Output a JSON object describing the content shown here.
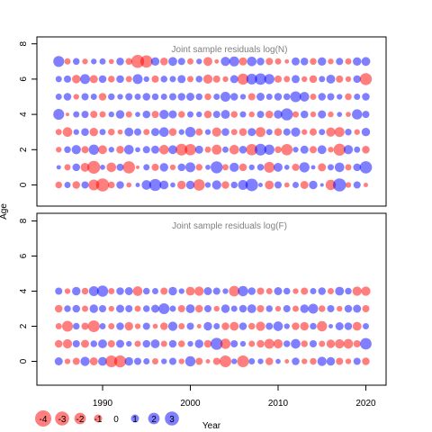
{
  "chart_data": {
    "type": "scatter",
    "subtype": "bubble-residuals",
    "xlabel": "Year",
    "ylabel": "Age",
    "x_ticks": [
      1990,
      2000,
      2010,
      2020
    ],
    "y_ticks": [
      0,
      2,
      4,
      6,
      8
    ],
    "xlim": [
      1983,
      2022.5
    ],
    "ylim": [
      -1.3,
      8.3
    ],
    "colors": {
      "positive": "#0000ff",
      "negative": "#ff0000",
      "opacity": 0.5
    },
    "legend": {
      "placement": "bottom-left",
      "entries": [
        "-4",
        "-3",
        "-2",
        "-1",
        "0",
        "1",
        "2",
        "3"
      ]
    },
    "panels": [
      {
        "title": "Joint sample residuals log(N)",
        "years": [
          1985,
          2020
        ],
        "ages": [
          0,
          7
        ],
        "residuals": [
          [
            -0.7,
            0.6,
            -0.9,
            0.8,
            -1.8,
            -2.6,
            -0.7,
            0.9,
            -0.4,
            0.3,
            1.4,
            2.2,
            1.2,
            0.4,
            -1.1,
            1.1,
            -2.0,
            0.5,
            1.3,
            -0.9,
            0.7,
            1.5,
            2.4,
            0.3,
            -1.2,
            0.8,
            -0.4,
            0.6,
            -1.0,
            1.1,
            0.2,
            -1.6,
            2.6,
            -0.5,
            0.8,
            -0.3
          ],
          [
            0.3,
            -0.6,
            0.9,
            -1.2,
            -2.5,
            0.4,
            -1.4,
            0.8,
            -2.3,
            -0.2,
            0.6,
            -0.8,
            1.1,
            -0.5,
            0.9,
            1.5,
            -0.7,
            0.4,
            2.2,
            -0.6,
            1.3,
            -0.9,
            0.5,
            0.7,
            -1.8,
            1.2,
            0.4,
            -0.8,
            1.6,
            0.3,
            -1.0,
            0.6,
            1.4,
            -0.6,
            0.9,
            2.3
          ],
          [
            -0.5,
            0.7,
            1.3,
            -0.8,
            1.6,
            -1.2,
            0.5,
            -0.9,
            1.4,
            0.4,
            0.8,
            1.0,
            -1.4,
            1.2,
            -2.1,
            -2.0,
            1.0,
            -0.6,
            -1.5,
            0.6,
            -1.4,
            0.9,
            -2.0,
            2.1,
            1.6,
            -0.7,
            -2.0,
            0.5,
            1.0,
            -0.8,
            1.2,
            -0.5,
            -2.2,
            1.3,
            0.6,
            -0.9
          ],
          [
            -0.6,
            -1.4,
            0.5,
            0.9,
            -1.1,
            0.6,
            -0.7,
            -0.4,
            1.2,
            0.8,
            -0.6,
            1.0,
            1.4,
            -0.9,
            0.5,
            1.6,
            -0.8,
            0.5,
            -1.3,
            0.9,
            -0.6,
            -0.9,
            1.0,
            -1.5,
            0.6,
            -0.9,
            0.8,
            1.3,
            -0.5,
            -0.8,
            0.6,
            -1.3,
            -1.5,
            0.7,
            -0.5,
            1.1
          ],
          [
            1.8,
            -0.2,
            0.6,
            0.8,
            -0.8,
            -0.6,
            0.5,
            1.1,
            -0.6,
            0.4,
            0.9,
            -0.8,
            1.3,
            1.0,
            -0.7,
            0.6,
            0.5,
            -0.9,
            0.8,
            1.2,
            -0.7,
            0.6,
            -0.5,
            0.8,
            -0.9,
            1.1,
            2.2,
            -0.6,
            0.9,
            -0.5,
            1.0,
            -0.5,
            0.4,
            -0.4,
            1.6,
            0.8
          ],
          [
            0.6,
            0.9,
            -0.5,
            0.8,
            0.6,
            -0.9,
            0.7,
            0.5,
            0.8,
            0.6,
            0.9,
            0.7,
            0.6,
            0.8,
            0.9,
            1.0,
            0.7,
            -0.7,
            0.6,
            1.5,
            0.9,
            0.5,
            -0.8,
            1.0,
            0.6,
            0.9,
            0.7,
            1.8,
            1.4,
            -0.6,
            0.9,
            0.8,
            0.5,
            -0.7,
            0.6,
            0.9
          ],
          [
            0.6,
            0.8,
            -1.1,
            1.5,
            -1.0,
            0.9,
            -0.7,
            0.9,
            -0.6,
            1.5,
            0.5,
            -0.8,
            0.7,
            0.6,
            1.0,
            -0.6,
            0.7,
            -1.3,
            -0.8,
            -0.5,
            1.0,
            -1.9,
            1.8,
            2.0,
            1.6,
            -0.8,
            -0.6,
            1.0,
            -0.5,
            -0.9,
            0.6,
            1.2,
            -0.8,
            -0.5,
            0.9,
            -2.2
          ],
          [
            1.8,
            -0.6,
            0.7,
            -0.5,
            0.5,
            0.6,
            -0.4,
            0.9,
            -0.7,
            -2.6,
            -2.3,
            1.1,
            -0.9,
            1.2,
            0.8,
            -0.6,
            0.5,
            -1.2,
            -0.3,
            1.3,
            1.5,
            -1.0,
            1.4,
            0.9,
            -0.8,
            -0.6,
            -0.3,
            1.0,
            0.9,
            -0.7,
            1.1,
            -0.5,
            0.8,
            -0.6,
            1.1,
            1.2
          ]
        ]
      },
      {
        "title": "Joint sample residuals log(F)",
        "years": [
          1985,
          2020
        ],
        "ages": [
          0,
          4
        ],
        "residuals": [
          [
            1.0,
            -0.5,
            -0.8,
            1.3,
            -1.0,
            1.2,
            -2.1,
            -2.2,
            1.1,
            0.8,
            0.6,
            -0.6,
            0.5,
            0.8,
            -0.5,
            1.6,
            -0.8,
            -0.3,
            -0.8,
            -2.1,
            0.5,
            -2.1,
            0.6,
            0.5,
            -0.9,
            0.4,
            -0.3,
            0.9,
            -0.5,
            -0.7,
            1.3,
            1.1,
            -0.8,
            -0.5,
            0.8,
            -0.9
          ],
          [
            -0.9,
            -1.3,
            0.8,
            -1.0,
            0.7,
            1.2,
            -0.8,
            1.0,
            0.5,
            -0.6,
            0.9,
            1.2,
            -0.6,
            0.9,
            -0.7,
            0.5,
            1.1,
            -0.9,
            2.2,
            -1.6,
            0.8,
            0.5,
            -0.6,
            -0.9,
            -1.5,
            -1.3,
            0.7,
            1.4,
            -0.7,
            0.8,
            -0.6,
            -1.1,
            -1.3,
            -1.4,
            -0.8,
            2.0
          ],
          [
            -0.6,
            -1.8,
            0.7,
            -0.8,
            -2.1,
            0.6,
            -0.6,
            0.9,
            -1.1,
            -0.5,
            0.8,
            -0.4,
            -0.9,
            1.3,
            -0.6,
            0.8,
            -0.3,
            1.1,
            0.6,
            -0.9,
            -1.2,
            0.9,
            -0.7,
            -1.3,
            0.8,
            1.4,
            0.5,
            -0.9,
            -1.1,
            0.7,
            -1.6,
            0.3,
            1.0,
            0.9,
            -1.2,
            0.6
          ],
          [
            -0.9,
            0.7,
            0.9,
            -0.6,
            1.1,
            0.8,
            -0.5,
            1.0,
            0.8,
            -0.6,
            0.7,
            1.0,
            1.8,
            0.6,
            -0.8,
            1.2,
            -0.9,
            0.8,
            -0.5,
            1.1,
            0.6,
            0.9,
            1.2,
            -0.8,
            0.7,
            -0.5,
            0.8,
            -0.6,
            1.1,
            1.5,
            -0.7,
            0.8,
            -0.5,
            0.9,
            1.0,
            -0.8
          ],
          [
            0.8,
            -0.5,
            1.1,
            -0.7,
            1.5,
            1.9,
            -0.6,
            0.9,
            1.0,
            -1.4,
            0.7,
            0.6,
            -0.8,
            1.1,
            0.5,
            -1.2,
            -1.3,
            1.0,
            0.8,
            0.5,
            -1.7,
            1.6,
            0.9,
            -0.8,
            -0.6,
            1.0,
            0.7,
            -0.5,
            -0.8,
            0.6,
            0.9,
            -0.6,
            1.2,
            0.7,
            -1.3,
            -1.3
          ]
        ]
      }
    ]
  }
}
